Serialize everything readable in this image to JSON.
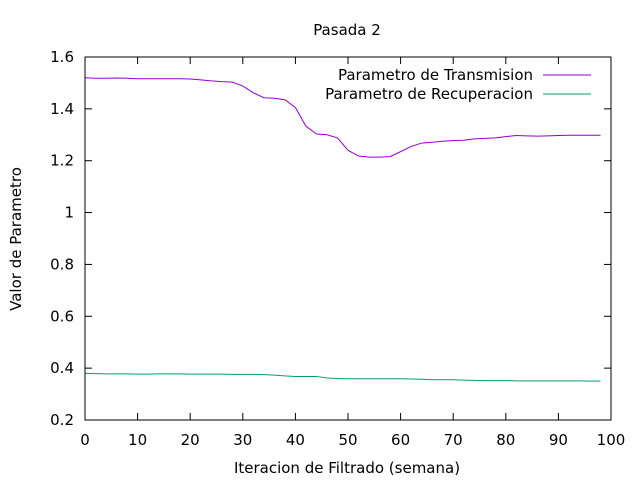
{
  "chart_data": {
    "type": "line",
    "title": "Pasada 2",
    "xlabel": "Iteracion de Filtrado (semana)",
    "ylabel": "Valor de Parametro",
    "xlim": [
      0,
      100
    ],
    "ylim": [
      0.2,
      1.6
    ],
    "xticks": [
      0,
      10,
      20,
      30,
      40,
      50,
      60,
      70,
      80,
      90,
      100
    ],
    "yticks": [
      0.2,
      0.4,
      0.6,
      0.8,
      1,
      1.2,
      1.4,
      1.6
    ],
    "ytick_labels": [
      "0.2",
      "0.4",
      "0.6",
      "0.8",
      "1",
      "1.2",
      "1.4",
      "1.6"
    ],
    "grid": false,
    "legend_position": "top-right",
    "series": [
      {
        "name": "Parametro de Transmision",
        "color": "#9400d3",
        "x": [
          0,
          2,
          4,
          6,
          8,
          10,
          12,
          14,
          16,
          18,
          20,
          22,
          24,
          26,
          28,
          30,
          32,
          34,
          36,
          38,
          40,
          42,
          44,
          46,
          48,
          50,
          52,
          54,
          56,
          58,
          60,
          62,
          64,
          66,
          68,
          70,
          72,
          74,
          76,
          78,
          80,
          82,
          84,
          86,
          88,
          90,
          92,
          94,
          96,
          98
        ],
        "y": [
          1.52,
          1.518,
          1.518,
          1.519,
          1.518,
          1.516,
          1.516,
          1.516,
          1.516,
          1.516,
          1.515,
          1.512,
          1.508,
          1.505,
          1.503,
          1.488,
          1.462,
          1.443,
          1.441,
          1.435,
          1.405,
          1.333,
          1.303,
          1.3,
          1.288,
          1.24,
          1.218,
          1.214,
          1.214,
          1.216,
          1.235,
          1.255,
          1.268,
          1.271,
          1.275,
          1.278,
          1.279,
          1.284,
          1.286,
          1.288,
          1.293,
          1.297,
          1.296,
          1.295,
          1.296,
          1.297,
          1.298,
          1.298,
          1.298,
          1.298
        ]
      },
      {
        "name": "Parametro de Recuperacion",
        "color": "#009e73",
        "x": [
          0,
          2,
          4,
          6,
          8,
          10,
          12,
          14,
          16,
          18,
          20,
          22,
          24,
          26,
          28,
          30,
          32,
          34,
          36,
          38,
          40,
          42,
          44,
          46,
          48,
          50,
          52,
          54,
          56,
          58,
          60,
          62,
          64,
          66,
          68,
          70,
          72,
          74,
          76,
          78,
          80,
          82,
          84,
          86,
          88,
          90,
          92,
          94,
          96,
          98
        ],
        "y": [
          0.38,
          0.379,
          0.378,
          0.378,
          0.378,
          0.377,
          0.377,
          0.378,
          0.378,
          0.378,
          0.377,
          0.377,
          0.377,
          0.377,
          0.376,
          0.376,
          0.376,
          0.375,
          0.373,
          0.37,
          0.368,
          0.368,
          0.368,
          0.362,
          0.36,
          0.359,
          0.359,
          0.359,
          0.359,
          0.359,
          0.359,
          0.358,
          0.357,
          0.355,
          0.355,
          0.355,
          0.354,
          0.353,
          0.352,
          0.352,
          0.352,
          0.351,
          0.351,
          0.351,
          0.351,
          0.351,
          0.351,
          0.351,
          0.35,
          0.35
        ]
      }
    ]
  }
}
